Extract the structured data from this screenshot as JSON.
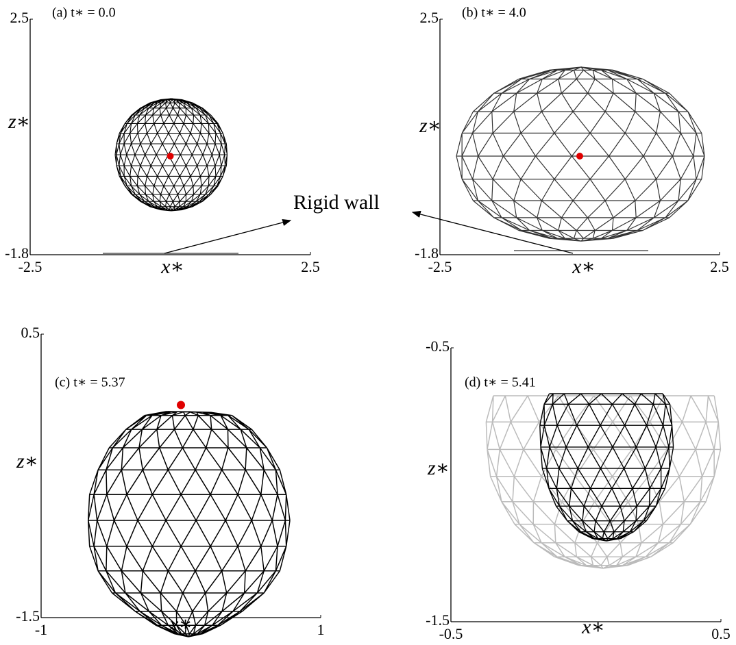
{
  "annotation": "Rigid wall",
  "chart_data": [
    {
      "type": "scatter",
      "title": "(a) t∗ = 0.0",
      "x_label": "x∗",
      "y_label": "z∗",
      "xlim": [
        -2.5,
        2.5
      ],
      "ylim": [
        -1.8,
        2.5
      ],
      "xticks": [
        -2.5,
        2.5
      ],
      "yticks": [
        -1.8,
        2.5
      ],
      "x": [
        0
      ],
      "values": [
        0
      ],
      "color": "#e00000"
    },
    {
      "type": "scatter",
      "title": "(b) t∗ = 4.0",
      "x_label": "x∗",
      "y_label": "z∗",
      "xlim": [
        -2.5,
        2.5
      ],
      "ylim": [
        -1.8,
        2.5
      ],
      "xticks": [
        -2.5,
        2.5
      ],
      "yticks": [
        -1.8,
        2.5
      ],
      "x": [
        0
      ],
      "values": [
        0
      ],
      "color": "#e00000"
    },
    {
      "type": "scatter",
      "title": "(c) t∗ = 5.37",
      "x_label": "x∗",
      "y_label": "z∗",
      "xlim": [
        -1,
        1
      ],
      "ylim": [
        -1.5,
        0.5
      ],
      "xticks": [
        -1,
        1
      ],
      "yticks": [
        -1.5,
        0.5
      ],
      "x": [
        0
      ],
      "values": [
        0
      ],
      "color": "#e00000"
    },
    {
      "type": "scatter",
      "title": "(d) t∗ = 5.41",
      "x_label": "x∗",
      "y_label": "z∗",
      "xlim": [
        -0.5,
        0.5
      ],
      "ylim": [
        -1.5,
        -0.5
      ],
      "xticks": [
        -0.5,
        0.5
      ],
      "yticks": [
        -1.5,
        -0.5
      ]
    }
  ]
}
